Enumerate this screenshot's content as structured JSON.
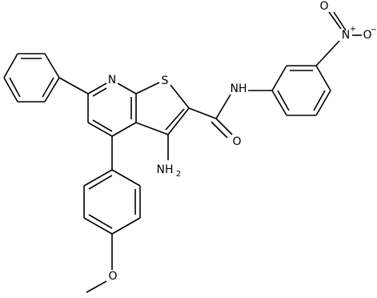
{
  "atoms": {
    "pyridine_n": {
      "label": "N"
    },
    "thiophene_s": {
      "label": "S"
    },
    "amino": {
      "label": "NH",
      "sub": "2"
    },
    "amide_nh": {
      "label": "NH"
    },
    "carbonyl_o": {
      "label": "O"
    },
    "nitro_n": {
      "label": "N",
      "charge": "+"
    },
    "nitro_o_top": {
      "label": "O"
    },
    "nitro_o_minus": {
      "label": "O",
      "charge": "−"
    },
    "methoxy_o": {
      "label": "O"
    }
  }
}
